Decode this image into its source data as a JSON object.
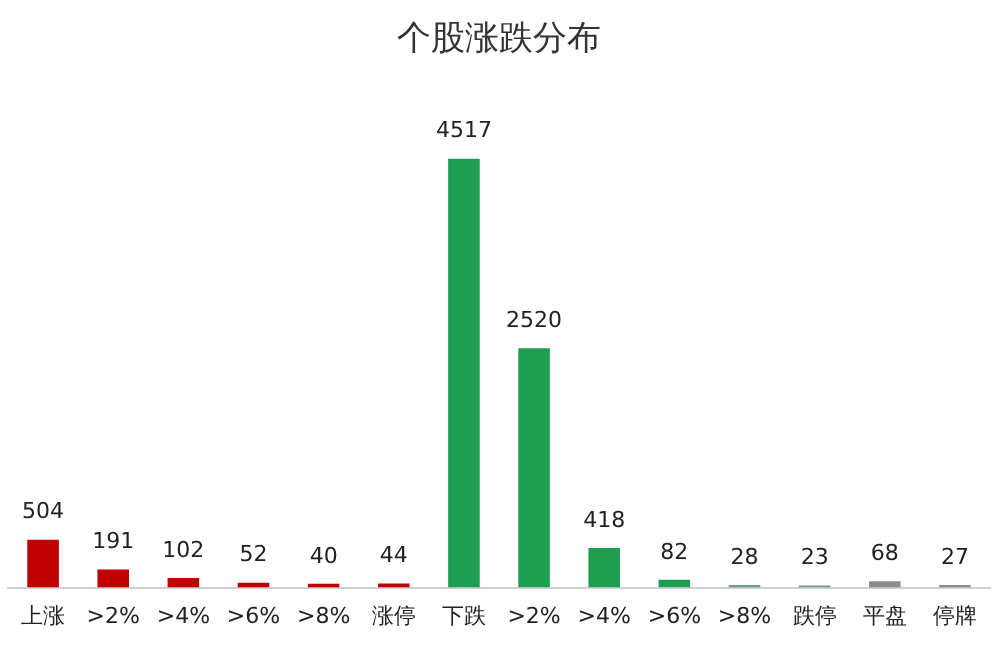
{
  "chart_data": {
    "type": "bar",
    "title": "个股涨跌分布",
    "categories": [
      "上涨",
      ">2%",
      ">4%",
      ">6%",
      ">8%",
      "涨停",
      "下跌",
      ">2%",
      ">4%",
      ">6%",
      ">8%",
      "跌停",
      "平盘",
      "停牌"
    ],
    "values": [
      504,
      191,
      102,
      52,
      40,
      44,
      4517,
      2520,
      418,
      82,
      28,
      23,
      68,
      27
    ],
    "colors": [
      "#c00000",
      "#c00000",
      "#c00000",
      "#c00000",
      "#c00000",
      "#c00000",
      "#1e9e50",
      "#1e9e50",
      "#1e9e50",
      "#1e9e50",
      "#6f9f80",
      "#6f9f80",
      "#8c8c8c",
      "#8c8c8c"
    ],
    "data_labels": true,
    "grid": false,
    "legend": false
  }
}
